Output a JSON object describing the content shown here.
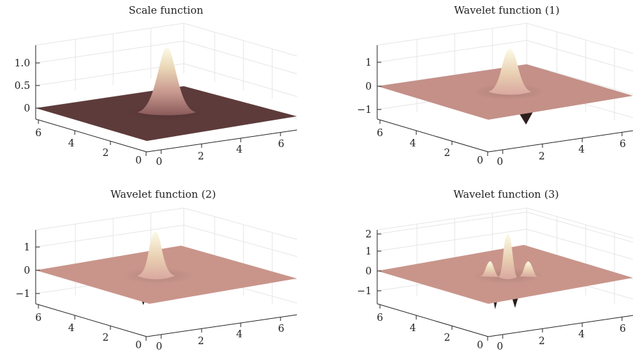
{
  "chart_data": [
    {
      "type": "surface",
      "title": "Scale function",
      "colormap": "pink",
      "x_ticks": [
        "0",
        "2",
        "4",
        "6"
      ],
      "y_ticks": [
        "0",
        "2",
        "4",
        "6"
      ],
      "z_ticks": [
        "0",
        "0.5",
        "1.0"
      ],
      "xlim": [
        0,
        7
      ],
      "ylim": [
        0,
        7
      ],
      "zlim": [
        -0.1,
        1.3
      ],
      "grid": true,
      "peak": 1.3,
      "trough": 0,
      "plane_color": "#5e3b3b"
    },
    {
      "type": "surface",
      "title": "Wavelet function (1)",
      "colormap": "pink",
      "x_ticks": [
        "0",
        "2",
        "4",
        "6"
      ],
      "y_ticks": [
        "0",
        "2",
        "4",
        "6"
      ],
      "z_ticks": [
        "−1",
        "0",
        "1"
      ],
      "xlim": [
        0,
        7
      ],
      "ylim": [
        0,
        7
      ],
      "zlim": [
        -1.5,
        1.7
      ],
      "grid": true,
      "peak": 1.7,
      "trough": -1.5,
      "plane_color": "#c49088"
    },
    {
      "type": "surface",
      "title": "Wavelet function (2)",
      "colormap": "pink",
      "x_ticks": [
        "0",
        "2",
        "4",
        "6"
      ],
      "y_ticks": [
        "0",
        "2",
        "4",
        "6"
      ],
      "z_ticks": [
        "−1",
        "0",
        "1"
      ],
      "xlim": [
        0,
        7
      ],
      "ylim": [
        0,
        7
      ],
      "zlim": [
        -1.5,
        1.7
      ],
      "grid": true,
      "peak": 1.7,
      "trough": -1.3,
      "plane_color": "#c9958b"
    },
    {
      "type": "surface",
      "title": "Wavelet function (3)",
      "colormap": "pink",
      "x_ticks": [
        "0",
        "2",
        "4",
        "6"
      ],
      "y_ticks": [
        "0",
        "2",
        "4",
        "6"
      ],
      "z_ticks": [
        "−1",
        "0",
        "1",
        "2"
      ],
      "xlim": [
        0,
        7
      ],
      "ylim": [
        0,
        7
      ],
      "zlim": [
        -1.8,
        2.2
      ],
      "grid": true,
      "peak": 1.7,
      "trough": -1.8,
      "plane_color": "#c9958b"
    }
  ]
}
